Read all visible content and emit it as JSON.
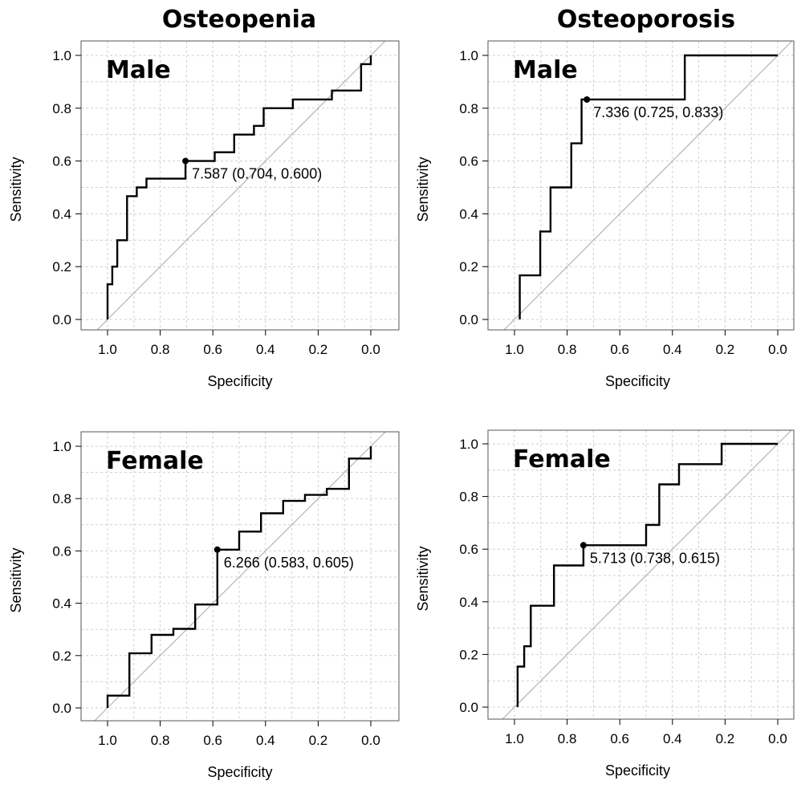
{
  "figure": {
    "columns": [
      {
        "title": "Osteopenia"
      },
      {
        "title": "Osteoporosis"
      }
    ]
  },
  "chart_data": [
    {
      "type": "line",
      "panel": "Male",
      "column": "Osteopenia",
      "xlabel": "Specificity",
      "ylabel": "Sensitivity",
      "xlim": [
        1.0,
        0.0
      ],
      "ylim": [
        0.0,
        1.0
      ],
      "xticks": [
        "1.0",
        "0.8",
        "0.6",
        "0.4",
        "0.2",
        "0.0"
      ],
      "yticks": [
        "0.0",
        "0.2",
        "0.4",
        "0.6",
        "0.8",
        "1.0"
      ],
      "grid": true,
      "x": [
        1.0,
        1.0,
        0.982,
        0.982,
        0.963,
        0.963,
        0.926,
        0.926,
        0.889,
        0.889,
        0.87,
        0.87,
        0.852,
        0.852,
        0.815,
        0.815,
        0.704,
        0.704,
        0.593,
        0.593,
        0.519,
        0.519,
        0.444,
        0.444,
        0.407,
        0.407,
        0.296,
        0.296,
        0.148,
        0.148,
        0.037,
        0.037,
        0.0,
        0.0
      ],
      "y": [
        0.0,
        0.133,
        0.133,
        0.2,
        0.2,
        0.3,
        0.3,
        0.467,
        0.467,
        0.5,
        0.5,
        0.5,
        0.5,
        0.533,
        0.533,
        0.533,
        0.533,
        0.6,
        0.6,
        0.633,
        0.633,
        0.7,
        0.7,
        0.733,
        0.733,
        0.8,
        0.8,
        0.833,
        0.833,
        0.867,
        0.867,
        0.967,
        0.967,
        1.0
      ],
      "best_point": {
        "specificity": 0.704,
        "sensitivity": 0.6,
        "label": "7.587 (0.704, 0.600)"
      }
    },
    {
      "type": "line",
      "panel": "Male",
      "column": "Osteoporosis",
      "xlabel": "Specificity",
      "ylabel": "Sensitivity",
      "xlim": [
        1.0,
        0.0
      ],
      "ylim": [
        0.0,
        1.0
      ],
      "xticks": [
        "1.0",
        "0.8",
        "0.6",
        "0.4",
        "0.2",
        "0.0"
      ],
      "yticks": [
        "0.0",
        "0.2",
        "0.4",
        "0.6",
        "0.8",
        "1.0"
      ],
      "grid": true,
      "x": [
        0.98,
        0.98,
        0.902,
        0.902,
        0.863,
        0.863,
        0.784,
        0.784,
        0.745,
        0.745,
        0.725,
        0.725,
        0.353,
        0.353,
        0.0
      ],
      "y": [
        0.0,
        0.167,
        0.167,
        0.333,
        0.333,
        0.5,
        0.5,
        0.667,
        0.667,
        0.833,
        0.833,
        0.833,
        0.833,
        1.0,
        1.0
      ],
      "best_point": {
        "specificity": 0.725,
        "sensitivity": 0.833,
        "label": "7.336 (0.725, 0.833)"
      }
    },
    {
      "type": "line",
      "panel": "Female",
      "column": "Osteopenia",
      "xlabel": "Specificity",
      "ylabel": "Sensitivity",
      "xlim": [
        1.0,
        0.0
      ],
      "ylim": [
        0.0,
        1.0
      ],
      "xticks": [
        "1.0",
        "0.8",
        "0.6",
        "0.4",
        "0.2",
        "0.0"
      ],
      "yticks": [
        "0.0",
        "0.2",
        "0.4",
        "0.6",
        "0.8",
        "1.0"
      ],
      "grid": true,
      "x": [
        1.0,
        1.0,
        0.917,
        0.917,
        0.833,
        0.833,
        0.75,
        0.75,
        0.667,
        0.667,
        0.583,
        0.583,
        0.5,
        0.5,
        0.417,
        0.417,
        0.333,
        0.333,
        0.25,
        0.25,
        0.167,
        0.167,
        0.083,
        0.083,
        0.0,
        0.0
      ],
      "y": [
        0.0,
        0.047,
        0.047,
        0.209,
        0.209,
        0.279,
        0.279,
        0.302,
        0.302,
        0.395,
        0.395,
        0.605,
        0.605,
        0.674,
        0.674,
        0.744,
        0.744,
        0.791,
        0.791,
        0.814,
        0.814,
        0.837,
        0.837,
        0.953,
        0.953,
        1.0
      ],
      "best_point": {
        "specificity": 0.583,
        "sensitivity": 0.605,
        "label": "6.266 (0.583, 0.605)"
      }
    },
    {
      "type": "line",
      "panel": "Female",
      "column": "Osteoporosis",
      "xlabel": "Specificity",
      "ylabel": "Sensitivity",
      "xlim": [
        1.0,
        0.0
      ],
      "ylim": [
        0.0,
        1.0
      ],
      "xticks": [
        "1.0",
        "0.8",
        "0.6",
        "0.4",
        "0.2",
        "0.0"
      ],
      "yticks": [
        "0.0",
        "0.2",
        "0.4",
        "0.6",
        "0.8",
        "1.0"
      ],
      "grid": true,
      "x": [
        0.988,
        0.988,
        0.963,
        0.963,
        0.938,
        0.938,
        0.85,
        0.85,
        0.738,
        0.738,
        0.5,
        0.5,
        0.45,
        0.45,
        0.375,
        0.375,
        0.213,
        0.213,
        0.0
      ],
      "y": [
        0.0,
        0.154,
        0.154,
        0.231,
        0.231,
        0.385,
        0.385,
        0.538,
        0.538,
        0.615,
        0.615,
        0.692,
        0.692,
        0.846,
        0.846,
        0.923,
        0.923,
        1.0,
        1.0
      ],
      "best_point": {
        "specificity": 0.738,
        "sensitivity": 0.615,
        "label": "5.713 (0.738, 0.615)"
      }
    }
  ]
}
